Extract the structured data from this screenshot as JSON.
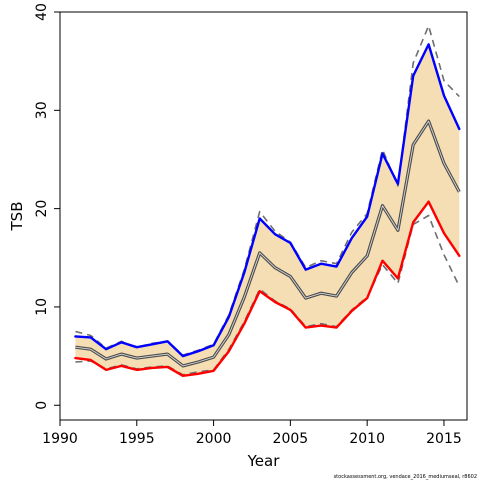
{
  "chart_data": {
    "type": "line",
    "title": "",
    "xlabel": "Year",
    "ylabel": "TSB",
    "xlim": [
      1990,
      2016.5
    ],
    "ylim": [
      -1.5,
      40
    ],
    "x_ticks": [
      1990,
      1995,
      2000,
      2005,
      2010,
      2015
    ],
    "y_ticks": [
      0,
      10,
      20,
      30,
      40
    ],
    "grid": false,
    "footnote": "stockassessment.org, vendace_2016_mediumseal, r8602",
    "x": [
      1991,
      1992,
      1993,
      1994,
      1995,
      1996,
      1997,
      1998,
      1999,
      2000,
      2001,
      2002,
      2003,
      2004,
      2005,
      2006,
      2007,
      2008,
      2009,
      2010,
      2011,
      2012,
      2013,
      2014,
      2015,
      2016
    ],
    "series": [
      {
        "role": "upper",
        "color": "#0000ff",
        "values": [
          7.0,
          6.9,
          5.7,
          6.4,
          5.9,
          6.2,
          6.5,
          5.0,
          5.5,
          6.1,
          9.0,
          13.5,
          19.0,
          17.4,
          16.5,
          13.8,
          14.4,
          14.1,
          17.0,
          19.2,
          25.6,
          22.5,
          33.5,
          36.7,
          31.5,
          28.1
        ]
      },
      {
        "role": "estimate",
        "color": "#555555",
        "values": [
          5.9,
          5.7,
          4.7,
          5.2,
          4.8,
          5.0,
          5.2,
          4.0,
          4.4,
          4.9,
          7.2,
          11.0,
          15.5,
          14.0,
          13.1,
          10.9,
          11.4,
          11.1,
          13.5,
          15.2,
          20.3,
          17.8,
          26.5,
          28.9,
          24.6,
          21.7
        ]
      },
      {
        "role": "lower",
        "color": "#ff0000",
        "values": [
          4.8,
          4.6,
          3.6,
          4.0,
          3.6,
          3.8,
          3.9,
          3.0,
          3.2,
          3.5,
          5.5,
          8.3,
          11.6,
          10.5,
          9.7,
          7.9,
          8.1,
          7.9,
          9.6,
          10.9,
          14.7,
          12.9,
          18.6,
          20.7,
          17.5,
          15.2
        ]
      },
      {
        "role": "retro-upper",
        "color": "#6e6e6e",
        "dash": true,
        "values": [
          7.5,
          7.1,
          5.8,
          6.5,
          5.9,
          6.3,
          6.5,
          5.1,
          5.6,
          6.2,
          9.2,
          13.8,
          19.7,
          17.7,
          16.6,
          14.0,
          14.7,
          14.4,
          17.6,
          19.5,
          26.0,
          22.3,
          34.8,
          38.6,
          33.0,
          31.4
        ]
      },
      {
        "role": "retro-lower",
        "color": "#6e6e6e",
        "dash": true,
        "values": [
          4.4,
          4.5,
          3.7,
          4.1,
          3.7,
          3.9,
          4.0,
          3.1,
          3.4,
          3.6,
          5.7,
          8.5,
          11.8,
          10.6,
          9.8,
          8.0,
          8.3,
          8.0,
          9.7,
          11.0,
          14.3,
          12.4,
          18.4,
          19.3,
          15.3,
          12.1
        ]
      }
    ],
    "band_fill": "#f5deb3"
  }
}
